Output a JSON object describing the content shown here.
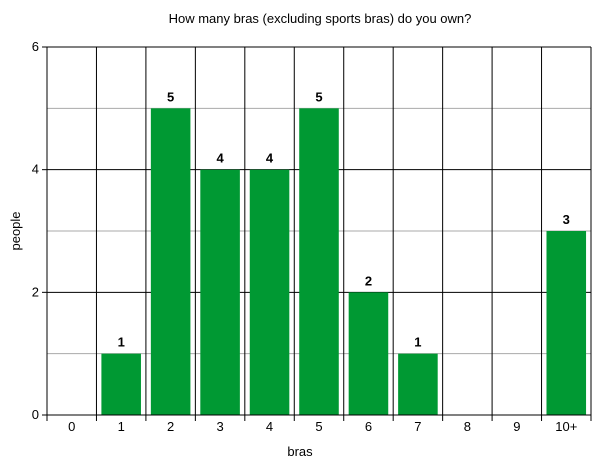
{
  "chart_data": {
    "type": "bar",
    "title": "How many bras (excluding sports bras) do you own?",
    "xlabel": "bras",
    "ylabel": "people",
    "categories": [
      "0",
      "1",
      "2",
      "3",
      "4",
      "5",
      "6",
      "7",
      "8",
      "9",
      "10+"
    ],
    "values": [
      0,
      1,
      5,
      4,
      4,
      5,
      2,
      1,
      0,
      0,
      3
    ],
    "data_labels": [
      "",
      "1",
      "5",
      "4",
      "4",
      "5",
      "2",
      "1",
      "",
      "",
      "3"
    ],
    "ylim": [
      0,
      6
    ],
    "y_ticks": [
      "0",
      "2",
      "4",
      "6"
    ],
    "grid": true,
    "bar_color": "#009933",
    "major_grid_color": "#000000",
    "minor_grid_color": "#aaaaaa"
  }
}
